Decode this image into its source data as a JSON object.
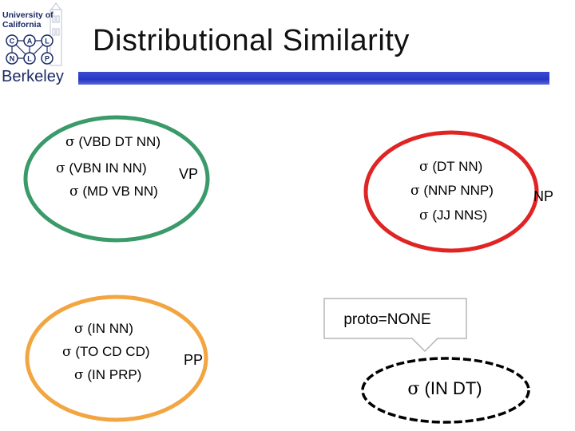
{
  "logo": {
    "line1": "University of",
    "line2": "California",
    "letters": [
      "C",
      "A",
      "L",
      "N",
      "L",
      "P"
    ],
    "name": "Berkeley"
  },
  "title": "Distributional Similarity",
  "sigma": "σ",
  "clusters": {
    "vp": {
      "label": "VP",
      "color": "#3a9a6a",
      "items": [
        "(VBD DT NN)",
        "(VBN IN NN)",
        "(MD VB NN)"
      ]
    },
    "np": {
      "label": "NP",
      "color": "#e02424",
      "items": [
        "(DT NN)",
        "(NNP NNP)",
        "(JJ NNS)"
      ]
    },
    "pp": {
      "label": "PP",
      "color": "#f2a540",
      "items": [
        "(IN NN)",
        "(TO CD CD)",
        "(IN PRP)"
      ]
    },
    "unassigned": {
      "callout": "proto=NONE",
      "item": "(IN DT)"
    }
  }
}
